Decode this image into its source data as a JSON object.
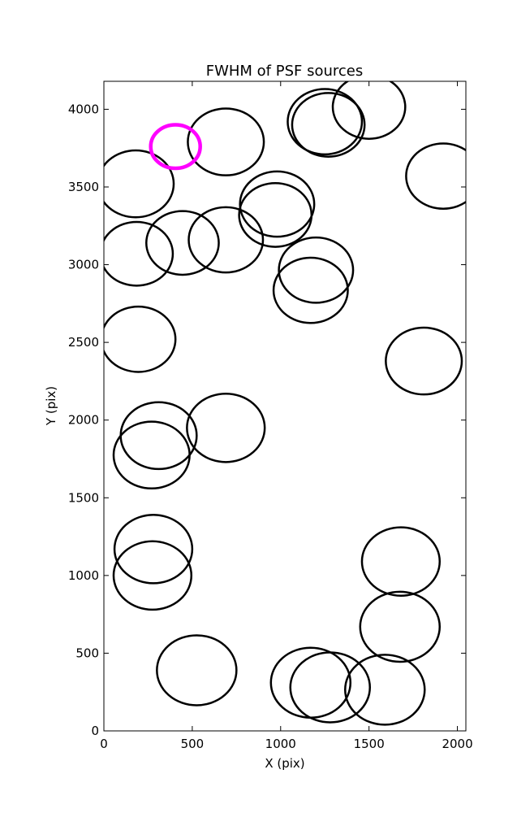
{
  "chart_data": {
    "type": "scatter",
    "title": "FWHM of PSF sources",
    "xlabel": "X (pix)",
    "ylabel": "Y (pix)",
    "xlim": [
      0,
      2048
    ],
    "ylim": [
      0,
      4180
    ],
    "xticks": [
      0,
      500,
      1000,
      1500,
      2000
    ],
    "yticks": [
      0,
      500,
      1000,
      1500,
      2000,
      2500,
      3000,
      3500,
      4000
    ],
    "grid": false,
    "marker": "open-circle",
    "series": [
      {
        "color": "#000000",
        "points": [
          {
            "x": 180,
            "y": 3520,
            "r": 215
          },
          {
            "x": 690,
            "y": 3790,
            "r": 215
          },
          {
            "x": 185,
            "y": 3070,
            "r": 205
          },
          {
            "x": 445,
            "y": 3140,
            "r": 205
          },
          {
            "x": 690,
            "y": 3160,
            "r": 210
          },
          {
            "x": 980,
            "y": 3390,
            "r": 210
          },
          {
            "x": 970,
            "y": 3320,
            "r": 205
          },
          {
            "x": 1200,
            "y": 2965,
            "r": 210
          },
          {
            "x": 1170,
            "y": 2835,
            "r": 210
          },
          {
            "x": 1250,
            "y": 3920,
            "r": 210
          },
          {
            "x": 1270,
            "y": 3900,
            "r": 205
          },
          {
            "x": 1500,
            "y": 4015,
            "r": 205
          },
          {
            "x": 1920,
            "y": 3570,
            "r": 210
          },
          {
            "x": 195,
            "y": 2520,
            "r": 210
          },
          {
            "x": 1810,
            "y": 2380,
            "r": 215
          },
          {
            "x": 310,
            "y": 1900,
            "r": 215
          },
          {
            "x": 270,
            "y": 1775,
            "r": 215
          },
          {
            "x": 690,
            "y": 1950,
            "r": 220
          },
          {
            "x": 280,
            "y": 1170,
            "r": 220
          },
          {
            "x": 275,
            "y": 1000,
            "r": 220
          },
          {
            "x": 1680,
            "y": 1090,
            "r": 220
          },
          {
            "x": 1675,
            "y": 670,
            "r": 225
          },
          {
            "x": 525,
            "y": 390,
            "r": 225
          },
          {
            "x": 1170,
            "y": 310,
            "r": 225
          },
          {
            "x": 1280,
            "y": 280,
            "r": 225
          },
          {
            "x": 1590,
            "y": 265,
            "r": 225
          }
        ]
      },
      {
        "color": "#ff00ff",
        "points": [
          {
            "x": 405,
            "y": 3760,
            "r": 140
          }
        ]
      }
    ]
  }
}
